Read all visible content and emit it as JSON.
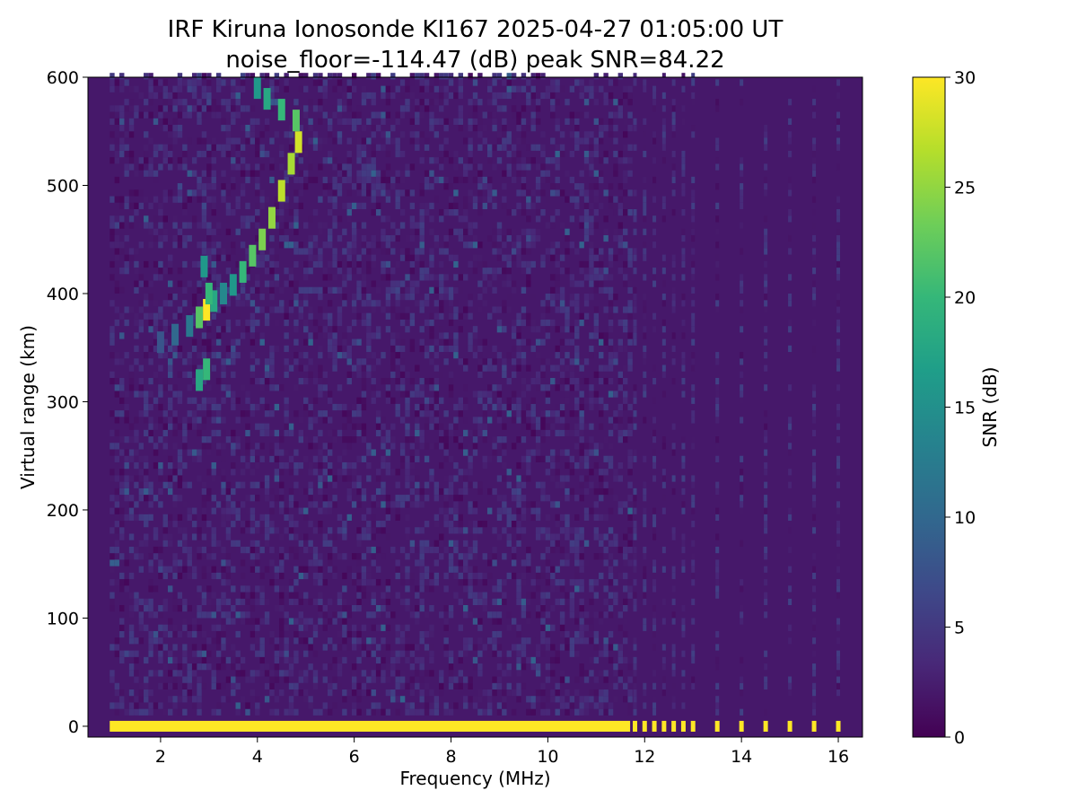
{
  "title": {
    "line1": "IRF Kiruna Ionosonde KI167 2025-04-27 01:05:00  UT",
    "line2": "noise_floor=-114.47 (dB) peak SNR=84.22"
  },
  "chart_data": {
    "type": "heatmap",
    "xlabel": "Frequency (MHz)",
    "ylabel": "Virtual range (km)",
    "xlim": [
      0.5,
      16.5
    ],
    "ylim": [
      -10,
      600
    ],
    "xticks": [
      2,
      4,
      6,
      8,
      10,
      12,
      14,
      16
    ],
    "yticks": [
      0,
      100,
      200,
      300,
      400,
      500,
      600
    ],
    "colorbar": {
      "label": "SNR (dB)",
      "range": [
        0,
        30
      ],
      "ticks": [
        0,
        5,
        10,
        15,
        20,
        25,
        30
      ],
      "colormap": "viridis"
    },
    "background_snr": 2,
    "colors": {
      "viridis": [
        "#440154",
        "#482878",
        "#3e4989",
        "#31688e",
        "#26828e",
        "#1f9e89",
        "#35b779",
        "#6ece58",
        "#b5de2b",
        "#fde725"
      ]
    },
    "sweep": {
      "continuous_range_mhz": [
        0.95,
        11.7
      ],
      "discrete_frequencies_mhz": [
        11.8,
        12.0,
        12.2,
        12.4,
        12.6,
        12.8,
        13.0,
        13.5,
        14.0,
        14.5,
        15.0,
        15.5,
        16.0
      ]
    },
    "ground_echo": {
      "range_km": [
        -5,
        5
      ],
      "snr": 30
    },
    "traces": [
      {
        "name": "",
        "points": [
          [
            2.0,
            355,
            8
          ],
          [
            2.3,
            362,
            10
          ],
          [
            2.6,
            370,
            12
          ],
          [
            2.8,
            378,
            22
          ],
          [
            2.95,
            385,
            30
          ],
          [
            3.1,
            393,
            18
          ],
          [
            3.3,
            400,
            14
          ],
          [
            3.5,
            408,
            16
          ],
          [
            3.7,
            420,
            20
          ],
          [
            3.9,
            435,
            22
          ],
          [
            4.1,
            450,
            24
          ],
          [
            4.3,
            470,
            25
          ],
          [
            4.5,
            495,
            27
          ],
          [
            4.7,
            520,
            26
          ],
          [
            4.85,
            540,
            28
          ]
        ]
      },
      {
        "name": "",
        "points": [
          [
            2.8,
            320,
            18
          ],
          [
            2.95,
            330,
            20
          ],
          [
            3.0,
            400,
            20
          ],
          [
            2.9,
            425,
            16
          ]
        ]
      },
      {
        "name": "",
        "points": [
          [
            4.0,
            590,
            16
          ],
          [
            4.2,
            580,
            18
          ],
          [
            4.5,
            570,
            20
          ],
          [
            4.8,
            560,
            22
          ]
        ]
      }
    ]
  }
}
